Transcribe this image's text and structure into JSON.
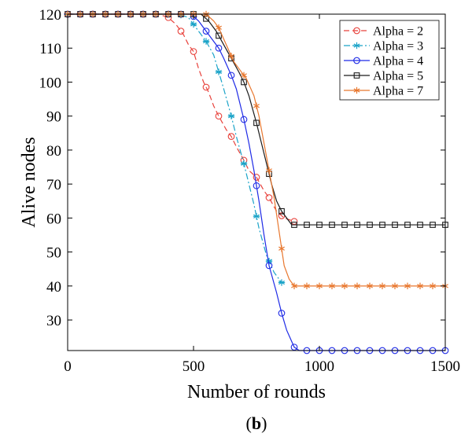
{
  "chart_data": {
    "type": "line",
    "title": "",
    "xlabel": "Number of rounds",
    "ylabel": "Alive nodes",
    "panel_label": "b",
    "xlim": [
      0,
      1500
    ],
    "ylim": [
      21,
      120
    ],
    "xticks": [
      0,
      500,
      1000,
      1500
    ],
    "yticks": [
      30,
      40,
      50,
      60,
      70,
      80,
      90,
      100,
      110,
      120
    ],
    "grid": false,
    "legend_position": "top-right",
    "series": [
      {
        "name": "Alpha = 2",
        "color": "#e8423c",
        "linestyle": "dashed",
        "marker": "circle",
        "markers_x": [
          0,
          50,
          100,
          150,
          200,
          250,
          300,
          350,
          400,
          450,
          500,
          550,
          600,
          650,
          700,
          750,
          800,
          850,
          900
        ],
        "points": [
          [
            0,
            120
          ],
          [
            360,
            120
          ],
          [
            400,
            119
          ],
          [
            430,
            117
          ],
          [
            460,
            114
          ],
          [
            480,
            111
          ],
          [
            500,
            109
          ],
          [
            520,
            104
          ],
          [
            540,
            100
          ],
          [
            560,
            97
          ],
          [
            580,
            93
          ],
          [
            600,
            90
          ],
          [
            630,
            86
          ],
          [
            650,
            84
          ],
          [
            670,
            81
          ],
          [
            700,
            77
          ],
          [
            720,
            74
          ],
          [
            750,
            72
          ],
          [
            780,
            68
          ],
          [
            800,
            66
          ],
          [
            830,
            62
          ],
          [
            860,
            60
          ],
          [
            900,
            59
          ]
        ]
      },
      {
        "name": "Alpha = 3",
        "color": "#1aa3c8",
        "linestyle": "dashdot",
        "marker": "star",
        "markers_x": [
          0,
          50,
          100,
          150,
          200,
          250,
          300,
          350,
          400,
          450,
          500,
          550,
          600,
          650,
          700,
          750,
          800,
          850
        ],
        "points": [
          [
            0,
            120
          ],
          [
            440,
            120
          ],
          [
            480,
            119
          ],
          [
            500,
            117
          ],
          [
            520,
            115
          ],
          [
            550,
            112
          ],
          [
            580,
            108
          ],
          [
            600,
            103
          ],
          [
            620,
            98
          ],
          [
            650,
            90
          ],
          [
            670,
            84
          ],
          [
            700,
            76
          ],
          [
            720,
            70
          ],
          [
            740,
            64
          ],
          [
            760,
            57
          ],
          [
            790,
            49
          ],
          [
            820,
            44
          ],
          [
            850,
            41
          ]
        ]
      },
      {
        "name": "Alpha = 4",
        "color": "#1f2be6",
        "linestyle": "solid",
        "marker": "circle",
        "markers_x": [
          0,
          50,
          100,
          150,
          200,
          250,
          300,
          350,
          400,
          450,
          500,
          550,
          600,
          650,
          700,
          750,
          800,
          850,
          900,
          950,
          1000,
          1050,
          1100,
          1150,
          1200,
          1250,
          1300,
          1350,
          1400,
          1450,
          1500
        ],
        "points": [
          [
            0,
            120
          ],
          [
            490,
            120
          ],
          [
            520,
            118
          ],
          [
            550,
            115
          ],
          [
            580,
            112
          ],
          [
            600,
            110
          ],
          [
            620,
            107
          ],
          [
            650,
            102
          ],
          [
            670,
            98
          ],
          [
            700,
            89
          ],
          [
            720,
            82
          ],
          [
            740,
            74
          ],
          [
            760,
            65
          ],
          [
            780,
            55
          ],
          [
            800,
            46
          ],
          [
            830,
            38
          ],
          [
            850,
            32
          ],
          [
            870,
            27
          ],
          [
            900,
            22
          ],
          [
            920,
            21
          ],
          [
            1500,
            21
          ]
        ]
      },
      {
        "name": "Alpha = 5",
        "color": "#1a1a1a",
        "linestyle": "solid",
        "marker": "square",
        "markers_x": [
          0,
          50,
          100,
          150,
          200,
          250,
          300,
          350,
          400,
          450,
          500,
          550,
          600,
          650,
          700,
          750,
          800,
          850,
          900,
          950,
          1000,
          1050,
          1100,
          1150,
          1200,
          1250,
          1300,
          1350,
          1400,
          1450,
          1500
        ],
        "points": [
          [
            0,
            120
          ],
          [
            530,
            120
          ],
          [
            560,
            118
          ],
          [
            590,
            115
          ],
          [
            620,
            111
          ],
          [
            650,
            107
          ],
          [
            680,
            103
          ],
          [
            700,
            100
          ],
          [
            720,
            96
          ],
          [
            750,
            88
          ],
          [
            770,
            82
          ],
          [
            790,
            76
          ],
          [
            810,
            70
          ],
          [
            830,
            65
          ],
          [
            850,
            62
          ],
          [
            870,
            60
          ],
          [
            890,
            58
          ],
          [
            1500,
            58
          ]
        ]
      },
      {
        "name": "Alpha = 7",
        "color": "#e8772e",
        "linestyle": "solid",
        "marker": "asterisk",
        "markers_x": [
          0,
          50,
          100,
          150,
          200,
          250,
          300,
          350,
          400,
          450,
          500,
          550,
          600,
          650,
          700,
          750,
          800,
          850,
          900,
          950,
          1000,
          1050,
          1100,
          1150,
          1200,
          1250,
          1300,
          1350,
          1400,
          1450,
          1500
        ],
        "points": [
          [
            0,
            120
          ],
          [
            550,
            120
          ],
          [
            580,
            118
          ],
          [
            600,
            116
          ],
          [
            630,
            111
          ],
          [
            660,
            106
          ],
          [
            680,
            104
          ],
          [
            710,
            101
          ],
          [
            740,
            96
          ],
          [
            760,
            90
          ],
          [
            780,
            82
          ],
          [
            800,
            74
          ],
          [
            820,
            66
          ],
          [
            840,
            56
          ],
          [
            860,
            46
          ],
          [
            880,
            42
          ],
          [
            900,
            40
          ],
          [
            1500,
            40
          ]
        ]
      }
    ]
  }
}
